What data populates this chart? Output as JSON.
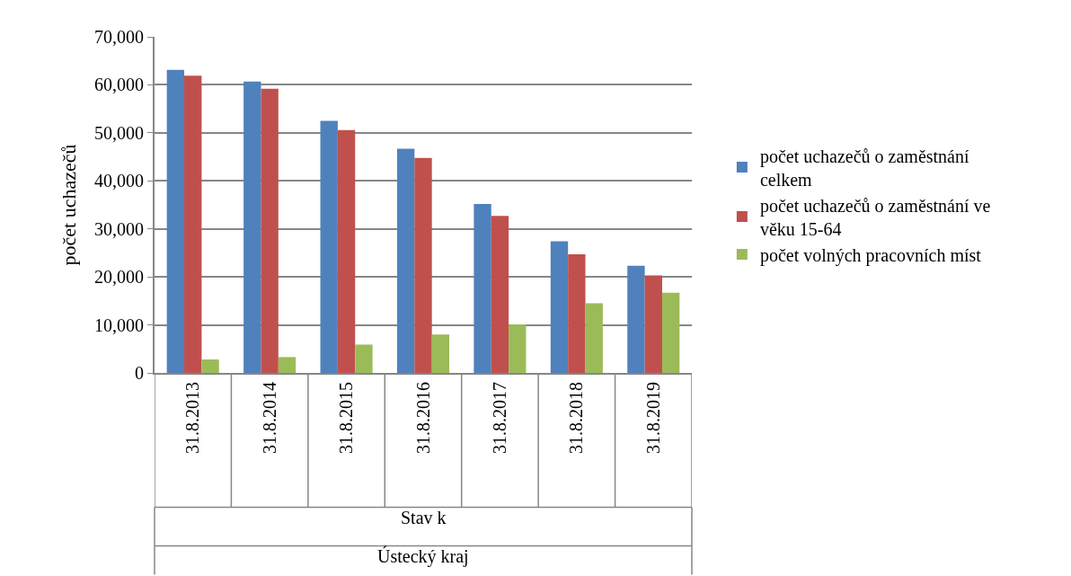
{
  "chart_data": {
    "type": "bar",
    "ylabel": "počet uchazečů",
    "categories": [
      "31.8.2013",
      "31.8.2014",
      "31.8.2015",
      "31.8.2016",
      "31.8.2017",
      "31.8.2018",
      "31.8.2019"
    ],
    "series": [
      {
        "name": "počet uchazečů o zaměstnání celkem",
        "color": "#4f81bd",
        "values": [
          63100,
          60700,
          52500,
          46700,
          35200,
          27400,
          22300
        ]
      },
      {
        "name": "počet uchazečů o zaměstnání ve věku 15-64",
        "color": "#c0504d",
        "values": [
          61900,
          59200,
          50600,
          44800,
          32700,
          24700,
          20300
        ]
      },
      {
        "name": "počet volných pracovních míst",
        "color": "#9bbb59",
        "values": [
          2800,
          3300,
          5900,
          8000,
          10100,
          14500,
          16700
        ]
      }
    ],
    "ylim": [
      0,
      70000
    ],
    "yticks": [
      0,
      {
        "value": 10000,
        "label": "10,000"
      },
      {
        "value": 20000,
        "label": "20,000"
      },
      {
        "value": 30000,
        "label": "30,000"
      },
      {
        "value": 40000,
        "label": "40,000"
      },
      {
        "value": 50000,
        "label": "50,000"
      },
      {
        "value": 60000,
        "label": "60,000"
      },
      {
        "value": 70000,
        "label": "70,000"
      }
    ],
    "annotations": [
      "Stav k",
      "Ústecký kraj"
    ],
    "grid": "y",
    "legend": "right"
  }
}
